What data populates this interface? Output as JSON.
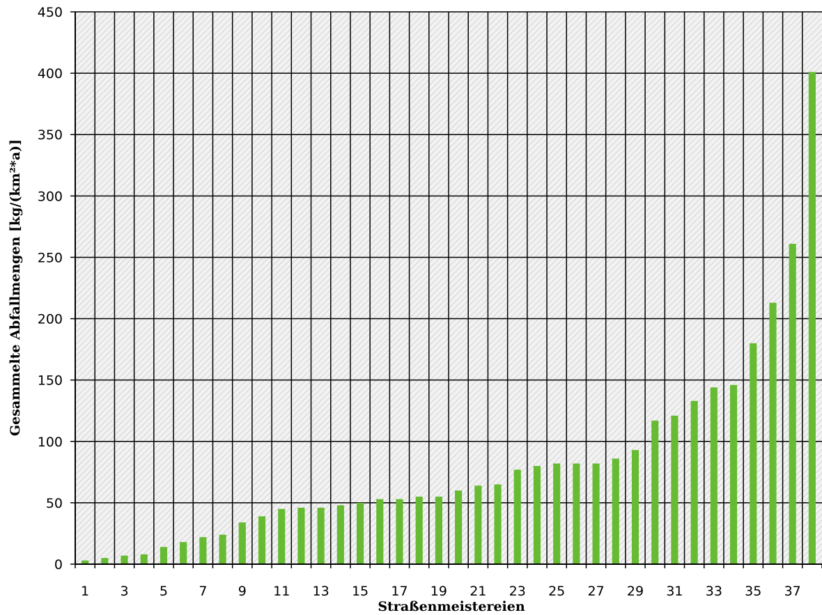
{
  "chart_data": {
    "type": "bar",
    "title": "",
    "xlabel": "Straßenmeistereien",
    "ylabel": "Gesammelte Abfallmengen [kg/(km²*a)]",
    "categories": [
      "1",
      "2",
      "3",
      "4",
      "5",
      "6",
      "7",
      "8",
      "9",
      "10",
      "11",
      "12",
      "13",
      "14",
      "15",
      "16",
      "17",
      "18",
      "19",
      "20",
      "21",
      "22",
      "23",
      "24",
      "25",
      "26",
      "27",
      "28",
      "29",
      "30",
      "31",
      "32",
      "33",
      "34",
      "35",
      "36",
      "37",
      "38"
    ],
    "x_tick_labels": [
      "1",
      "3",
      "5",
      "7",
      "9",
      "11",
      "13",
      "15",
      "17",
      "19",
      "21",
      "23",
      "25",
      "27",
      "29",
      "31",
      "33",
      "35",
      "37"
    ],
    "y_ticks": [
      0,
      50,
      100,
      150,
      200,
      250,
      300,
      350,
      400,
      450
    ],
    "values": [
      3,
      5,
      7,
      8,
      14,
      18,
      22,
      24,
      34,
      39,
      45,
      46,
      46,
      48,
      50,
      53,
      53,
      55,
      55,
      60,
      64,
      65,
      77,
      80,
      82,
      82,
      82,
      86,
      93,
      117,
      121,
      133,
      144,
      146,
      180,
      213,
      261,
      401
    ],
    "ylim": [
      0,
      450
    ],
    "grid": true,
    "legend": "none",
    "colors": {
      "bar": "#66bb33",
      "grid": "#000000",
      "plot_background": "#f2f2f2",
      "hatch": "#c6c6c6"
    }
  }
}
